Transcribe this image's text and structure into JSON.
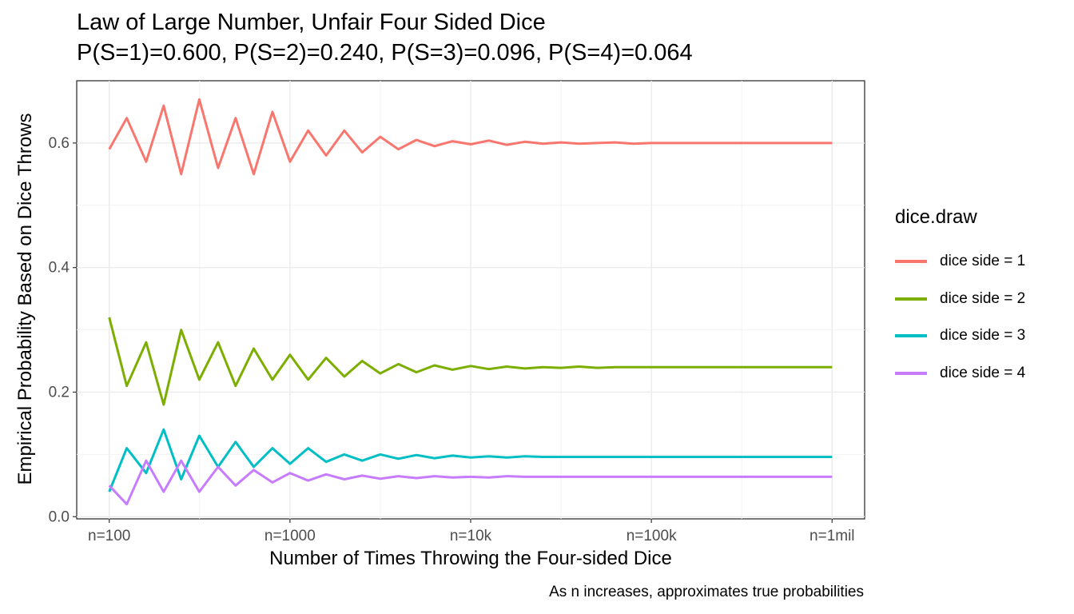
{
  "chart_data": {
    "type": "line",
    "title": "Law of Large Number, Unfair Four Sided Dice",
    "subtitle": "P(S=1)=0.600, P(S=2)=0.240, P(S=3)=0.096, P(S=4)=0.064",
    "xlabel": "Number of Times Throwing the Four-sided Dice",
    "ylabel": "Empirical Probability Based on Dice Throws",
    "caption": "As n increases, approximates true probabilities",
    "x_scale": "log10",
    "xlim": [
      100,
      1000000
    ],
    "ylim": [
      0,
      0.7
    ],
    "x_ticks": [
      100,
      1000,
      10000,
      100000,
      1000000
    ],
    "x_tick_labels": [
      "n=100",
      "n=1000",
      "n=10k",
      "n=100k",
      "n=1mil"
    ],
    "y_ticks": [
      0,
      0.2,
      0.4,
      0.6
    ],
    "y_tick_labels": [
      "0.0",
      "0.2",
      "0.4",
      "0.6"
    ],
    "grid": true,
    "legend": {
      "title": "dice.draw",
      "position": "right"
    },
    "x": [
      100,
      125,
      160,
      200,
      250,
      315,
      400,
      500,
      630,
      800,
      1000,
      1260,
      1585,
      2000,
      2510,
      3160,
      3980,
      5010,
      6310,
      7940,
      10000,
      12600,
      15850,
      19950,
      25120,
      31620,
      39810,
      50120,
      63100,
      79430,
      100000,
      158500,
      251200,
      398100,
      631000,
      1000000
    ],
    "series": [
      {
        "name": "dice side = 1",
        "color": "#F8766D",
        "values": [
          0.59,
          0.64,
          0.57,
          0.66,
          0.55,
          0.67,
          0.56,
          0.64,
          0.55,
          0.65,
          0.57,
          0.62,
          0.58,
          0.62,
          0.585,
          0.61,
          0.59,
          0.605,
          0.595,
          0.603,
          0.598,
          0.604,
          0.597,
          0.602,
          0.599,
          0.601,
          0.599,
          0.6,
          0.601,
          0.599,
          0.6,
          0.6,
          0.6,
          0.6,
          0.6,
          0.6
        ]
      },
      {
        "name": "dice side = 2",
        "color": "#7CAE00",
        "values": [
          0.32,
          0.21,
          0.28,
          0.18,
          0.3,
          0.22,
          0.28,
          0.21,
          0.27,
          0.22,
          0.26,
          0.22,
          0.255,
          0.225,
          0.25,
          0.23,
          0.245,
          0.232,
          0.243,
          0.236,
          0.242,
          0.237,
          0.241,
          0.238,
          0.24,
          0.239,
          0.241,
          0.239,
          0.24,
          0.24,
          0.24,
          0.24,
          0.24,
          0.24,
          0.24,
          0.24
        ]
      },
      {
        "name": "dice side = 3",
        "color": "#00BFC4",
        "values": [
          0.04,
          0.11,
          0.07,
          0.14,
          0.06,
          0.13,
          0.08,
          0.12,
          0.08,
          0.11,
          0.085,
          0.11,
          0.088,
          0.1,
          0.09,
          0.1,
          0.093,
          0.099,
          0.094,
          0.098,
          0.095,
          0.097,
          0.095,
          0.097,
          0.096,
          0.096,
          0.096,
          0.096,
          0.096,
          0.096,
          0.096,
          0.096,
          0.096,
          0.096,
          0.096,
          0.096
        ]
      },
      {
        "name": "dice side = 4",
        "color": "#C77CFF",
        "values": [
          0.05,
          0.02,
          0.09,
          0.04,
          0.09,
          0.04,
          0.08,
          0.05,
          0.075,
          0.055,
          0.07,
          0.058,
          0.068,
          0.06,
          0.066,
          0.061,
          0.065,
          0.062,
          0.065,
          0.063,
          0.064,
          0.063,
          0.065,
          0.064,
          0.064,
          0.064,
          0.064,
          0.064,
          0.064,
          0.064,
          0.064,
          0.064,
          0.064,
          0.064,
          0.064,
          0.064
        ]
      }
    ]
  }
}
